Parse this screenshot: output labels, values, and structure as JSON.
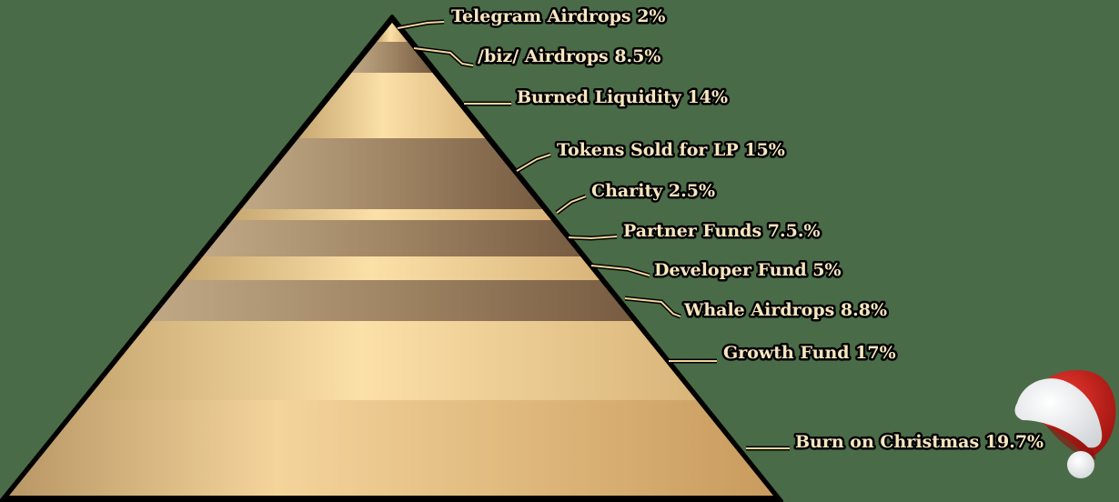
{
  "chart_data": {
    "type": "pyramid",
    "segments": [
      {
        "label": "Telegram Airdrops 2%",
        "name": "Telegram Airdrops",
        "value": 2,
        "tone": "light"
      },
      {
        "label": "/biz/ Airdrops 8.5%",
        "name": "/biz/ Airdrops",
        "value": 8.5,
        "tone": "dark"
      },
      {
        "label": "Burned Liquidity 14%",
        "name": "Burned Liquidity",
        "value": 14,
        "tone": "light"
      },
      {
        "label": "Tokens Sold for LP 15%",
        "name": "Tokens Sold for LP",
        "value": 15,
        "tone": "dark"
      },
      {
        "label": "Charity 2.5%",
        "name": "Charity",
        "value": 2.5,
        "tone": "light"
      },
      {
        "label": "Partner Funds 7.5.%",
        "name": "Partner Funds",
        "value": 7.5,
        "tone": "dark"
      },
      {
        "label": "Developer Fund 5%",
        "name": "Developer Fund",
        "value": 5,
        "tone": "light"
      },
      {
        "label": "Whale Airdrops 8.8%",
        "name": "Whale Airdrops",
        "value": 8.8,
        "tone": "dark"
      },
      {
        "label": "Growth Fund 17%",
        "name": "Growth Fund",
        "value": 17,
        "tone": "light"
      },
      {
        "label": "Burn on Christmas 19.7%",
        "name": "Burn on Christmas",
        "value": 19.7,
        "tone": "light"
      }
    ],
    "decoration": "santa-hat-icon"
  },
  "colors": {
    "background": "#4a6b47",
    "light_band_left": "#c8a871",
    "light_band_mid": "#fbe0a8",
    "light_band_right": "#d9b57a",
    "dark_band_left": "#b29a76",
    "dark_band_right": "#7d6348",
    "label_text": "#f7e6bf",
    "hat_red": "#d0201c"
  }
}
